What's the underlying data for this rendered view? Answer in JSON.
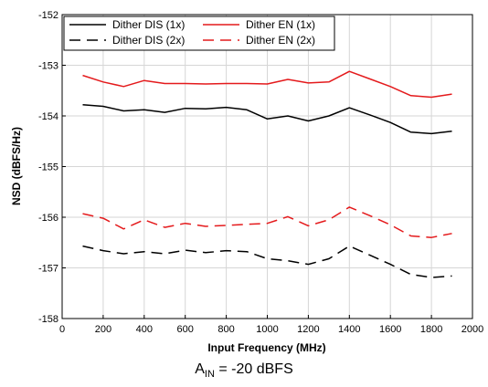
{
  "chart_data": {
    "type": "line",
    "xlabel": "Input Frequency (MHz)",
    "ylabel": "NSD (dBFS/Hz)",
    "xlim": [
      0,
      2000
    ],
    "ylim": [
      -158,
      -152
    ],
    "xticks": [
      0,
      200,
      400,
      600,
      800,
      1000,
      1200,
      1400,
      1600,
      1800,
      2000
    ],
    "yticks": [
      -158,
      -157,
      -156,
      -155,
      -154,
      -153,
      -152
    ],
    "grid": true,
    "legend_position": "top-left",
    "x": [
      100,
      200,
      300,
      400,
      500,
      600,
      700,
      800,
      900,
      1000,
      1100,
      1200,
      1300,
      1400,
      1500,
      1600,
      1700,
      1800,
      1900
    ],
    "series": [
      {
        "name": "Dither DIS (1x)",
        "color": "#000000",
        "dash": "solid",
        "values": [
          -153.78,
          -153.81,
          -153.9,
          -153.88,
          -153.93,
          -153.85,
          -153.86,
          -153.83,
          -153.88,
          -154.06,
          -154.0,
          -154.1,
          -154.0,
          -153.84,
          -153.98,
          -154.13,
          -154.32,
          -154.35,
          -154.3
        ]
      },
      {
        "name": "Dither EN (1x)",
        "color": "#e41a1c",
        "dash": "solid",
        "values": [
          -153.2,
          -153.33,
          -153.42,
          -153.3,
          -153.36,
          -153.36,
          -153.37,
          -153.36,
          -153.36,
          -153.37,
          -153.28,
          -153.35,
          -153.33,
          -153.12,
          -153.27,
          -153.42,
          -153.6,
          -153.63,
          -153.57
        ]
      },
      {
        "name": "Dither DIS (2x)",
        "color": "#000000",
        "dash": "dashed",
        "values": [
          -156.57,
          -156.66,
          -156.72,
          -156.68,
          -156.72,
          -156.65,
          -156.7,
          -156.66,
          -156.68,
          -156.82,
          -156.86,
          -156.93,
          -156.82,
          -156.57,
          -156.75,
          -156.93,
          -157.13,
          -157.19,
          -157.16
        ]
      },
      {
        "name": "Dither EN (2x)",
        "color": "#e41a1c",
        "dash": "dashed",
        "values": [
          -155.93,
          -156.02,
          -156.23,
          -156.05,
          -156.2,
          -156.12,
          -156.18,
          -156.16,
          -156.14,
          -156.12,
          -155.99,
          -156.17,
          -156.05,
          -155.8,
          -155.97,
          -156.15,
          -156.37,
          -156.4,
          -156.32
        ]
      }
    ]
  },
  "caption": {
    "main": "A",
    "sub": "IN",
    "rest": " = -20 dBFS"
  }
}
